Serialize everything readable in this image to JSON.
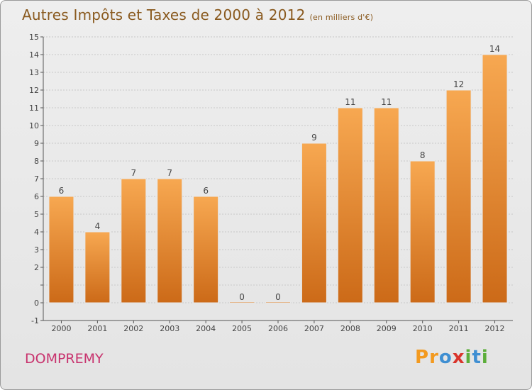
{
  "header": {
    "title": "Autres Impôts et Taxes de 2000 à 2012",
    "subtitle": "(en milliers d'€)"
  },
  "footer": {
    "commune": "DOMPREMY",
    "logo_text": "Proxiti",
    "logo_letters": [
      {
        "char": "P",
        "color": "#f39a1f"
      },
      {
        "char": "r",
        "color": "#f39a1f"
      },
      {
        "char": "o",
        "color": "#3f8fd2"
      },
      {
        "char": "x",
        "color": "#d9342b"
      },
      {
        "char": "i",
        "color": "#5cae3a"
      },
      {
        "char": "t",
        "color": "#3f8fd2"
      },
      {
        "char": "i",
        "color": "#5cae3a"
      }
    ]
  },
  "colors": {
    "bar_light": "#f7a851",
    "bar_dark": "#cc6a18",
    "text": "#444444",
    "grid": "#c8c8c8"
  },
  "chart_data": {
    "type": "bar",
    "title": "Autres Impôts et Taxes de 2000 à 2012",
    "subtitle": "(en milliers d'€)",
    "categories": [
      "2000",
      "2001",
      "2002",
      "2003",
      "2004",
      "2005",
      "2006",
      "2007",
      "2008",
      "2009",
      "2010",
      "2011",
      "2012"
    ],
    "values": [
      6,
      4,
      7,
      7,
      6,
      0,
      0,
      9,
      11,
      11,
      8,
      12,
      14
    ],
    "ylim": [
      -1,
      15
    ],
    "yticks": [
      -1,
      0,
      1,
      2,
      3,
      4,
      5,
      6,
      7,
      8,
      9,
      10,
      11,
      12,
      13,
      14,
      15
    ],
    "ytick_labels": [
      "-1",
      "0",
      "",
      "2",
      "3",
      "4",
      "5",
      "6",
      "7",
      "8",
      "9",
      "10",
      "11",
      "12",
      "13",
      "14",
      "15"
    ],
    "grid": true,
    "xlabel": "",
    "ylabel": ""
  }
}
